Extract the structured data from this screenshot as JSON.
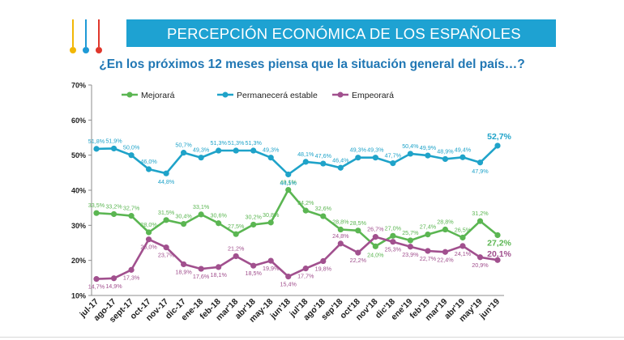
{
  "header": {
    "title": "PERCEPCIÓN ECONÓMICA DE LOS ESPAÑOLES",
    "icon": "thermometer-icons",
    "colors": {
      "banner": "#1ea2d2",
      "thermo_yellow": "#f2b705",
      "thermo_blue": "#1e9ad6",
      "thermo_red": "#e0372c"
    }
  },
  "chart_data": {
    "type": "line",
    "title": "¿En los próximos 12 meses piensa que la situación general del país…?",
    "xlabel": "",
    "ylabel": "",
    "ylim": [
      10,
      70
    ],
    "yticks": [
      "10%",
      "20%",
      "30%",
      "40%",
      "50%",
      "60%",
      "70%"
    ],
    "grid": false,
    "legend_position": "top-left",
    "categories": [
      "jul-17",
      "ago-17",
      "sept-17",
      "oct-17",
      "nov-17",
      "dic-17",
      "ene-18",
      "feb-18",
      "mar'18",
      "abr'18",
      "may-18",
      "jun'18",
      "jul'18",
      "ago'18",
      "sep'18",
      "oct'18",
      "nov'18",
      "dic'18",
      "ene'19",
      "feb'19",
      "mar'19",
      "abr'19",
      "may'19",
      "jun'19"
    ],
    "series": [
      {
        "name": "Mejorará",
        "color": "#5bb652",
        "values": [
          33.5,
          33.2,
          32.7,
          28.0,
          31.5,
          30.4,
          33.1,
          30.6,
          27.5,
          30.2,
          30.8,
          40.1,
          34.2,
          32.6,
          28.8,
          28.5,
          24.0,
          27.0,
          25.7,
          27.4,
          28.8,
          26.5,
          31.2,
          27.2
        ],
        "labels": [
          "33,5%",
          "33,2%",
          "32,7%",
          "28,0%",
          "31,5%",
          "30,4%",
          "33,1%",
          "30,6%",
          "27,5%",
          "30,2%",
          "30,8%",
          "40,1%",
          "34,2%",
          "32,6%",
          "28,8%",
          "28,5%",
          "24,0%",
          "27,0%",
          "25,7%",
          "27,4%",
          "28,8%",
          "26,5%",
          "31,2%",
          "27,2%"
        ]
      },
      {
        "name": "Permanecerá estable",
        "color": "#1fa3c9",
        "values": [
          51.8,
          51.9,
          50.0,
          46.0,
          44.8,
          50.7,
          49.3,
          51.3,
          51.3,
          51.3,
          49.3,
          44.5,
          48.1,
          47.6,
          46.4,
          49.3,
          49.3,
          47.7,
          50.4,
          49.9,
          48.9,
          49.4,
          47.9,
          52.7
        ],
        "labels": [
          "51,8%",
          "51,9%",
          "50,0%",
          "46,0%",
          "44,8%",
          "50,7%",
          "49,3%",
          "51,3%",
          "51,3%",
          "51,3%",
          "49,3%",
          "44,5%",
          "48,1%",
          "47,6%",
          "46,4%",
          "49,3%",
          "49,3%",
          "47,7%",
          "50,4%",
          "49,9%",
          "48,9%",
          "49,4%",
          "47,9%",
          "52,7%"
        ]
      },
      {
        "name": "Empeorará",
        "color": "#a1508e",
        "values": [
          14.7,
          14.9,
          17.3,
          26.0,
          23.7,
          18.9,
          17.6,
          18.1,
          21.2,
          18.5,
          19.9,
          15.4,
          17.7,
          19.8,
          24.8,
          22.2,
          26.7,
          25.3,
          23.9,
          22.7,
          22.4,
          24.1,
          20.9,
          20.1
        ],
        "labels": [
          "14,7%",
          "14,9%",
          "17,3%",
          "26,0%",
          "23,7%",
          "18,9%",
          "17,6%",
          "18,1%",
          "21,2%",
          "18,5%",
          "19,9%",
          "15,4%",
          "17,7%",
          "19,8%",
          "24,8%",
          "22,2%",
          "26,7%",
          "25,3%",
          "23,9%",
          "22,7%",
          "22,4%",
          "24,1%",
          "20,9%",
          "20,1%"
        ]
      }
    ]
  }
}
